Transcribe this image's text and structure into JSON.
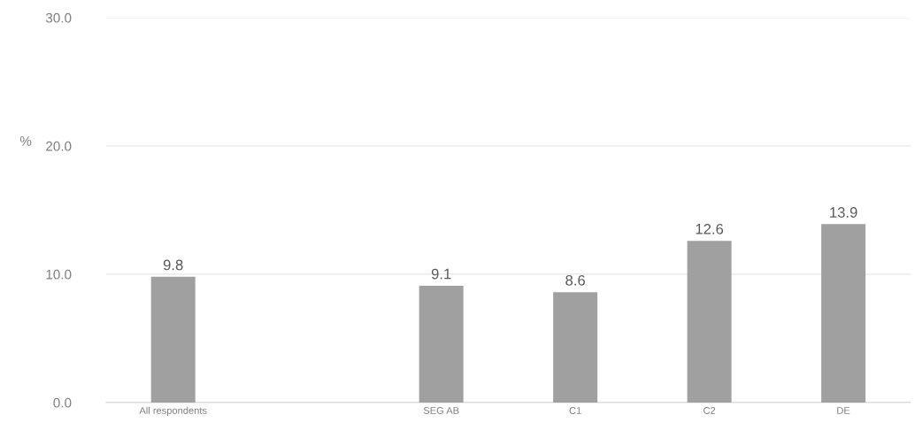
{
  "chart_data": {
    "type": "bar",
    "ylabel": "%",
    "categories": [
      "All respondents",
      null,
      "SEG AB",
      "C1",
      "C2",
      "DE"
    ],
    "values": [
      9.8,
      null,
      9.1,
      8.6,
      12.6,
      13.9
    ],
    "color": "#a0a0a0",
    "ylim": [
      0,
      30
    ],
    "yticks": [
      {
        "value": 0,
        "label": "0.0"
      },
      {
        "value": 10,
        "label": "10.0"
      },
      {
        "value": 20,
        "label": "20.0"
      },
      {
        "value": 30,
        "label": "30.0"
      }
    ],
    "grid": "y",
    "data_labels": true
  }
}
